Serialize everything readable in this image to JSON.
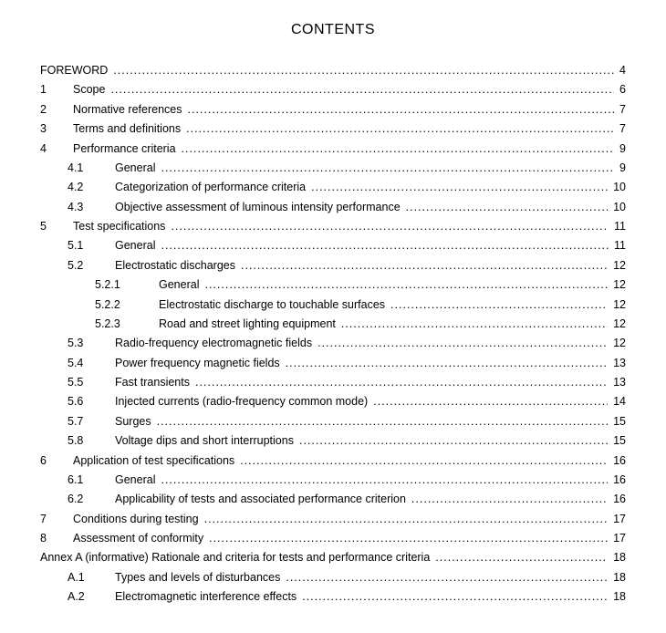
{
  "title": "CONTENTS",
  "entries": [
    {
      "indent": 0,
      "num": "",
      "label": "FOREWORD",
      "page": "4",
      "nonum": true
    },
    {
      "indent": 0,
      "num": "1",
      "label": "Scope",
      "page": "6"
    },
    {
      "indent": 0,
      "num": "2",
      "label": "Normative references",
      "page": "7"
    },
    {
      "indent": 0,
      "num": "3",
      "label": "Terms and definitions",
      "page": "7"
    },
    {
      "indent": 0,
      "num": "4",
      "label": "Performance criteria",
      "page": "9"
    },
    {
      "indent": 1,
      "num": "4.1",
      "label": "General",
      "page": "9"
    },
    {
      "indent": 1,
      "num": "4.2",
      "label": "Categorization of performance criteria",
      "page": "10"
    },
    {
      "indent": 1,
      "num": "4.3",
      "label": "Objective assessment of luminous intensity performance",
      "page": "10"
    },
    {
      "indent": 0,
      "num": "5",
      "label": "Test specifications",
      "page": "11"
    },
    {
      "indent": 1,
      "num": "5.1",
      "label": "General",
      "page": "11"
    },
    {
      "indent": 1,
      "num": "5.2",
      "label": "Electrostatic discharges",
      "page": "12"
    },
    {
      "indent": 2,
      "num": "5.2.1",
      "label": "General",
      "page": "12"
    },
    {
      "indent": 2,
      "num": "5.2.2",
      "label": "Electrostatic discharge to touchable surfaces",
      "page": "12"
    },
    {
      "indent": 2,
      "num": "5.2.3",
      "label": "Road and street lighting equipment",
      "page": "12"
    },
    {
      "indent": 1,
      "num": "5.3",
      "label": "Radio-frequency electromagnetic fields",
      "page": "12"
    },
    {
      "indent": 1,
      "num": "5.4",
      "label": "Power frequency magnetic fields",
      "page": "13"
    },
    {
      "indent": 1,
      "num": "5.5",
      "label": "Fast transients",
      "page": "13"
    },
    {
      "indent": 1,
      "num": "5.6",
      "label": "Injected currents (radio-frequency common mode)",
      "page": "14"
    },
    {
      "indent": 1,
      "num": "5.7",
      "label": "Surges",
      "page": "15"
    },
    {
      "indent": 1,
      "num": "5.8",
      "label": "Voltage dips and short interruptions",
      "page": "15"
    },
    {
      "indent": 0,
      "num": "6",
      "label": "Application of test specifications",
      "page": "16"
    },
    {
      "indent": 1,
      "num": "6.1",
      "label": "General",
      "page": "16"
    },
    {
      "indent": 1,
      "num": "6.2",
      "label": "Applicability of tests and associated performance criterion",
      "page": "16"
    },
    {
      "indent": 0,
      "num": "7",
      "label": "Conditions during testing",
      "page": "17"
    },
    {
      "indent": 0,
      "num": "8",
      "label": "Assessment of conformity",
      "page": "17"
    },
    {
      "indent": 0,
      "num": "",
      "label": "Annex A (informative)  Rationale and criteria for tests and performance criteria",
      "page": "18",
      "nonum": true
    },
    {
      "indent": 1,
      "num": "A.1",
      "label": "Types and levels of disturbances",
      "page": "18"
    },
    {
      "indent": 1,
      "num": "A.2",
      "label": "Electromagnetic interference effects",
      "page": "18"
    }
  ]
}
